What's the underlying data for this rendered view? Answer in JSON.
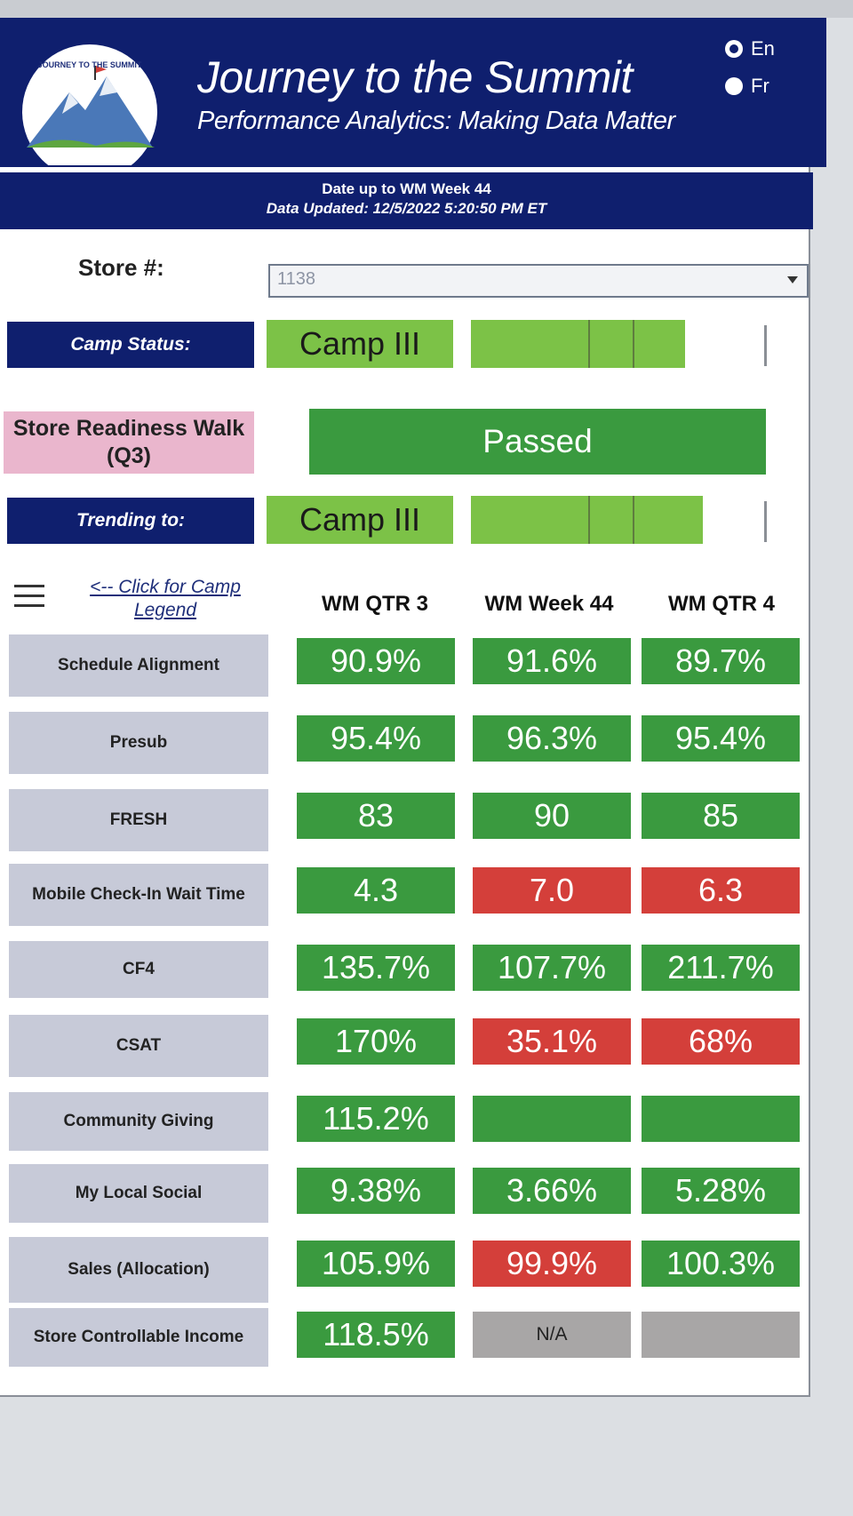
{
  "header": {
    "title": "Journey to the Summit",
    "subtitle": "Performance Analytics: Making Data Matter",
    "logo_text": "JOURNEY TO THE SUMMIT",
    "languages": [
      {
        "label": "En",
        "selected": true
      },
      {
        "label": "Fr",
        "selected": false
      }
    ]
  },
  "info": {
    "date_line": "Date up to WM Week 44",
    "updated_line": "Data Updated: 12/5/2022 5:20:50 PM ET"
  },
  "store": {
    "label": "Store #:",
    "value": "1138"
  },
  "camp_status": {
    "label": "Camp Status:",
    "value": "Camp III",
    "progress": 0.83
  },
  "readiness": {
    "label": "Store Readiness Walk (Q3)",
    "value": "Passed"
  },
  "trending": {
    "label": "Trending to:",
    "value": "Camp III",
    "progress": 0.9
  },
  "legend_link": "<-- Click for Camp Legend",
  "columns": [
    "WM QTR 3",
    "WM Week 44",
    "WM QTR 4"
  ],
  "colors": {
    "green": "#3a9a3f",
    "red": "#d43f3a",
    "gray": "#a8a6a6",
    "navy": "#0f1f6e"
  },
  "metrics": [
    {
      "label": "Schedule Alignment",
      "values": [
        "90.9%",
        "91.6%",
        "89.7%"
      ],
      "status": [
        "green",
        "green",
        "green"
      ]
    },
    {
      "label": "Presub",
      "values": [
        "95.4%",
        "96.3%",
        "95.4%"
      ],
      "status": [
        "green",
        "green",
        "green"
      ]
    },
    {
      "label": "FRESH",
      "values": [
        "83",
        "90",
        "85"
      ],
      "status": [
        "green",
        "green",
        "green"
      ]
    },
    {
      "label": "Mobile Check-In Wait Time",
      "values": [
        "4.3",
        "7.0",
        "6.3"
      ],
      "status": [
        "green",
        "red",
        "red"
      ]
    },
    {
      "label": "CF4",
      "values": [
        "135.7%",
        "107.7%",
        "211.7%"
      ],
      "status": [
        "green",
        "green",
        "green"
      ]
    },
    {
      "label": "CSAT",
      "values": [
        "170%",
        "35.1%",
        "68%"
      ],
      "status": [
        "green",
        "red",
        "red"
      ]
    },
    {
      "label": "Community Giving",
      "values": [
        "115.2%",
        "",
        ""
      ],
      "status": [
        "green",
        "green",
        "green"
      ]
    },
    {
      "label": "My Local Social",
      "values": [
        "9.38%",
        "3.66%",
        "5.28%"
      ],
      "status": [
        "green",
        "green",
        "green"
      ]
    },
    {
      "label": "Sales (Allocation)",
      "values": [
        "105.9%",
        "99.9%",
        "100.3%"
      ],
      "status": [
        "green",
        "red",
        "green"
      ]
    },
    {
      "label": "Store Controllable Income",
      "values": [
        "118.5%",
        "N/A",
        ""
      ],
      "status": [
        "green",
        "gray",
        "gray"
      ]
    }
  ]
}
